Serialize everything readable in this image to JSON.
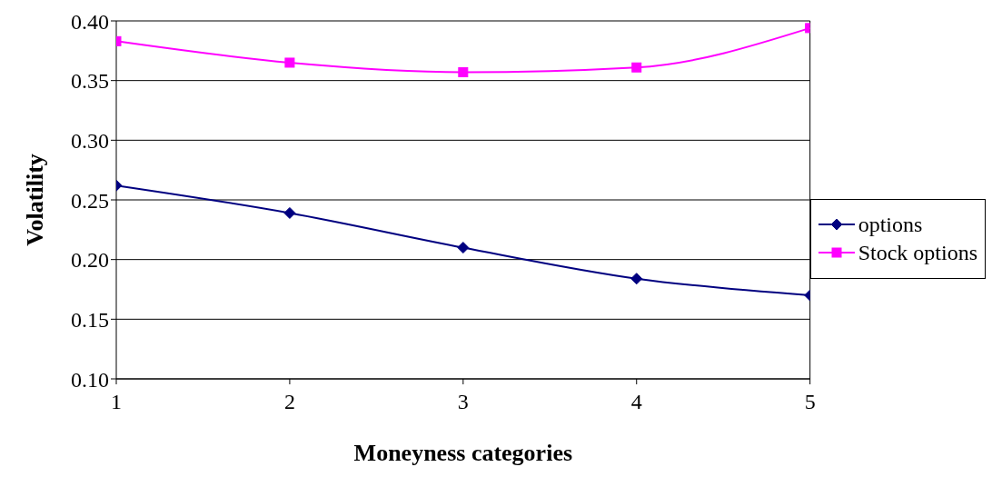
{
  "chart_data": {
    "type": "line",
    "xlabel": "Moneyness categories",
    "ylabel": "Volatility",
    "x": [
      1,
      2,
      3,
      4,
      5
    ],
    "xlim": [
      1,
      5
    ],
    "xticks": [
      1,
      2,
      3,
      4,
      5
    ],
    "ylim": [
      0.1,
      0.4
    ],
    "yticks": [
      {
        "value": 0.1,
        "label": "0.10"
      },
      {
        "value": 0.15,
        "label": "0.15"
      },
      {
        "value": 0.2,
        "label": "0.20"
      },
      {
        "value": 0.25,
        "label": "0.25"
      },
      {
        "value": 0.3,
        "label": "0.30"
      },
      {
        "value": 0.35,
        "label": "0.35"
      },
      {
        "value": 0.4,
        "label": "0.40"
      }
    ],
    "grid": "y",
    "legend": "right",
    "series": [
      {
        "name": "options",
        "color": "#000080",
        "marker": "diamond",
        "values": [
          0.262,
          0.239,
          0.21,
          0.184,
          0.17
        ]
      },
      {
        "name": "Stock options",
        "color": "#ff00ff",
        "marker": "square",
        "values": [
          0.383,
          0.365,
          0.357,
          0.361,
          0.394
        ]
      }
    ]
  }
}
